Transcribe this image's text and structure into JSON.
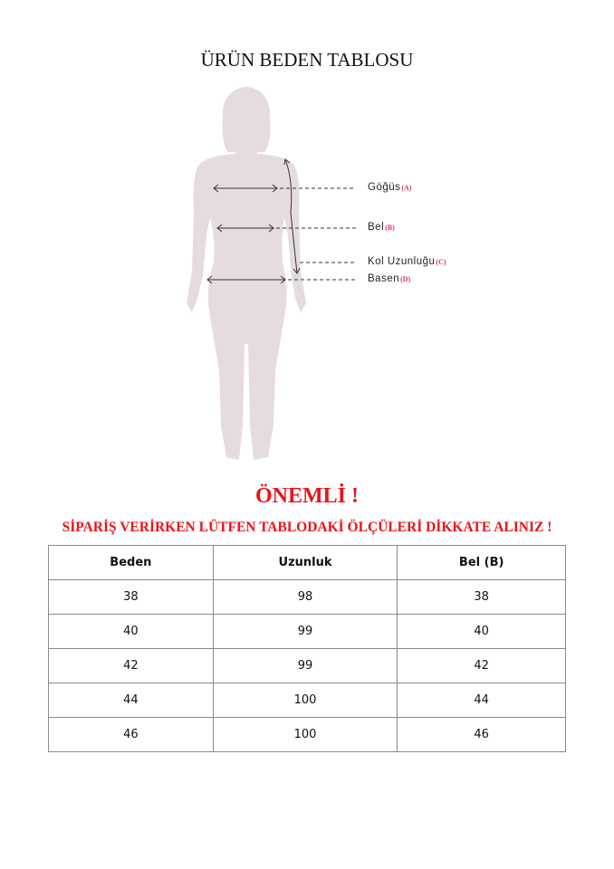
{
  "title": "ÜRÜN BEDEN TABLOSU",
  "figure": {
    "silhouette_color": "#e6dcdd",
    "measurements": [
      {
        "label": "Göğüs",
        "code": "(A)"
      },
      {
        "label": "Bel",
        "code": "(B)"
      },
      {
        "label": "Kol Uzunluğu",
        "code": "(C)"
      },
      {
        "label": "Basen",
        "code": "(D)"
      }
    ]
  },
  "important": "ÖNEMLİ !",
  "notice": "SİPARİŞ VERİRKEN LÜTFEN TABLODAKİ ÖLÇÜLERİ DİKKATE ALINIZ !",
  "accent_color": "#e8141a",
  "table": {
    "headers": [
      "Beden",
      "Uzunluk",
      "Bel (B)"
    ],
    "rows": [
      [
        "38",
        "98",
        "38"
      ],
      [
        "40",
        "99",
        "40"
      ],
      [
        "42",
        "99",
        "42"
      ],
      [
        "44",
        "100",
        "44"
      ],
      [
        "46",
        "100",
        "46"
      ]
    ]
  }
}
